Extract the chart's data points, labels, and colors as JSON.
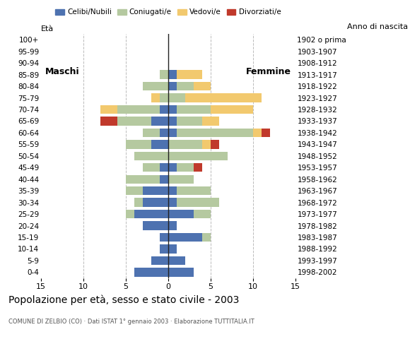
{
  "age_groups": [
    "0-4",
    "5-9",
    "10-14",
    "15-19",
    "20-24",
    "25-29",
    "30-34",
    "35-39",
    "40-44",
    "45-49",
    "50-54",
    "55-59",
    "60-64",
    "65-69",
    "70-74",
    "75-79",
    "80-84",
    "85-89",
    "90-94",
    "95-99",
    "100+"
  ],
  "birth_years": [
    "1998-2002",
    "1993-1997",
    "1988-1992",
    "1983-1987",
    "1978-1982",
    "1973-1977",
    "1968-1972",
    "1963-1967",
    "1958-1962",
    "1953-1957",
    "1948-1952",
    "1943-1947",
    "1938-1942",
    "1933-1937",
    "1928-1932",
    "1923-1927",
    "1918-1922",
    "1913-1917",
    "1908-1912",
    "1903-1907",
    "1902 o prima"
  ],
  "colors": {
    "celibe": "#4e72b0",
    "coniugato": "#b5c9a0",
    "vedovo": "#f2c96e",
    "divorziato": "#c0392b"
  },
  "males": {
    "celibe": [
      4,
      2,
      1,
      1,
      3,
      4,
      3,
      3,
      1,
      1,
      0,
      2,
      1,
      2,
      1,
      0,
      0,
      0,
      0,
      0,
      0
    ],
    "coniugato": [
      0,
      0,
      0,
      0,
      0,
      1,
      1,
      2,
      4,
      2,
      4,
      3,
      2,
      4,
      5,
      1,
      3,
      1,
      0,
      0,
      0
    ],
    "vedovo": [
      0,
      0,
      0,
      0,
      0,
      0,
      0,
      0,
      0,
      0,
      0,
      0,
      0,
      0,
      2,
      1,
      0,
      0,
      0,
      0,
      0
    ],
    "divorziato": [
      0,
      0,
      0,
      0,
      0,
      0,
      0,
      0,
      0,
      0,
      0,
      0,
      0,
      2,
      0,
      0,
      0,
      0,
      0,
      0,
      0
    ]
  },
  "females": {
    "celibe": [
      3,
      2,
      1,
      4,
      1,
      3,
      1,
      1,
      0,
      1,
      0,
      0,
      1,
      1,
      1,
      0,
      1,
      1,
      0,
      0,
      0
    ],
    "coniugata": [
      0,
      0,
      0,
      1,
      0,
      2,
      5,
      4,
      3,
      2,
      7,
      4,
      9,
      3,
      4,
      2,
      2,
      0,
      0,
      0,
      0
    ],
    "vedova": [
      0,
      0,
      0,
      0,
      0,
      0,
      0,
      0,
      0,
      0,
      0,
      1,
      1,
      2,
      5,
      9,
      2,
      3,
      0,
      0,
      0
    ],
    "divorziata": [
      0,
      0,
      0,
      0,
      0,
      0,
      0,
      0,
      0,
      1,
      0,
      1,
      1,
      0,
      0,
      0,
      0,
      0,
      0,
      0,
      0
    ]
  },
  "xlim": 15,
  "title": "Popolazione per età, sesso e stato civile - 2003",
  "subtitle": "COMUNE DI ZELBIO (CO) · Dati ISTAT 1° gennaio 2003 · Elaborazione TUTTITALIA.IT",
  "ylabel_left": "Età",
  "ylabel_right": "Anno di nascita",
  "legend_labels": [
    "Celibi/Nubili",
    "Coniugati/e",
    "Vedovi/e",
    "Divorziati/e"
  ],
  "bg_color": "#ffffff",
  "grid_color": "#bbbbbb"
}
